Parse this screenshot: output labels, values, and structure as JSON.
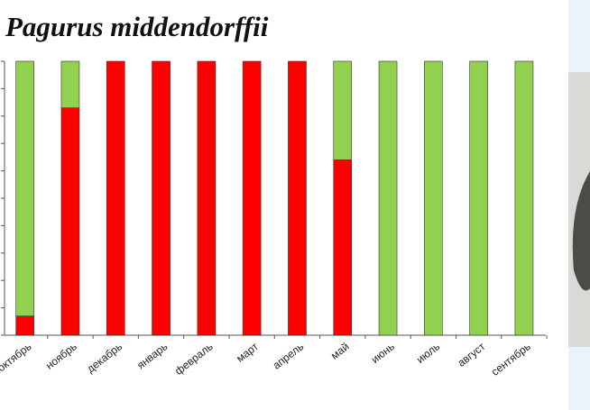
{
  "chart_data": {
    "type": "stacked-bar",
    "title": "Pagurus middendorffii",
    "categories": [
      "октябрь",
      "ноябрь",
      "декабрь",
      "январь",
      "февраль",
      "март",
      "апрель",
      "май",
      "июнь",
      "июль",
      "август",
      "сентябрь"
    ],
    "series": [
      {
        "color": "#ff0000",
        "values": [
          7,
          83,
          100,
          100,
          100,
          100,
          100,
          64,
          0,
          0,
          0,
          0
        ]
      },
      {
        "color": "#92d050",
        "values": [
          93,
          17,
          0,
          0,
          0,
          0,
          0,
          36,
          100,
          100,
          100,
          100
        ]
      }
    ],
    "ylim": [
      0,
      100
    ],
    "yticks": [
      0,
      10,
      20,
      30,
      40,
      50,
      60,
      70,
      80,
      90,
      100
    ]
  }
}
